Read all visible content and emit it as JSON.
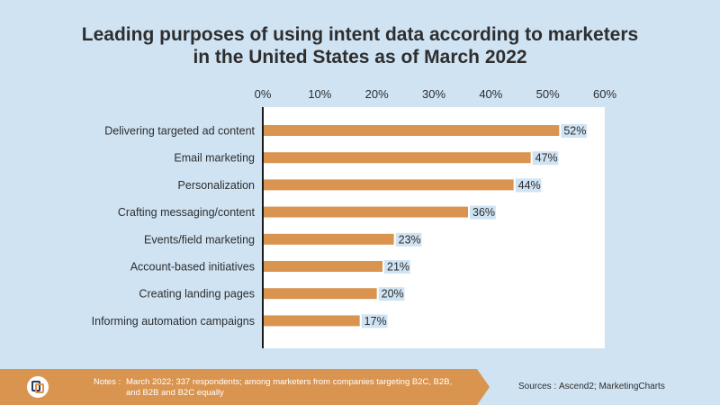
{
  "title_lines": [
    "Leading purposes of using intent data according to marketers",
    "in the United States as of March 2022"
  ],
  "chart_data": {
    "type": "bar",
    "orientation": "horizontal",
    "categories": [
      "Delivering targeted ad content",
      "Email marketing",
      "Personalization",
      "Crafting messaging/content",
      "Events/field marketing",
      "Account-based initiatives",
      "Creating landing pages",
      "Informing automation campaigns"
    ],
    "values": [
      52,
      47,
      44,
      36,
      23,
      21,
      20,
      17
    ],
    "value_labels": [
      "52%",
      "47%",
      "44%",
      "36%",
      "23%",
      "21%",
      "20%",
      "17%"
    ],
    "xlim": [
      0,
      60
    ],
    "xticks": [
      "0%",
      "10%",
      "20%",
      "30%",
      "40%",
      "50%",
      "60%"
    ],
    "tick_values": [
      0,
      10,
      20,
      30,
      40,
      50,
      60
    ],
    "x_axis_position": "top",
    "grid": false,
    "bar_color": "#d9944f",
    "label_bg_color": "#cfe3f3"
  },
  "footer": {
    "notes_label": "Notes :",
    "notes_text": "March 2022; 337 respondents; among marketers from companies targeting B2C, B2B, and B2B and B2C equally",
    "sources_label": "Sources :",
    "sources_text": "Ascend2; MarketingCharts"
  },
  "colors": {
    "background": "#cfe3f3",
    "bar": "#d9944f",
    "notes_panel": "#d9944f",
    "text": "#2e2e2e"
  },
  "icons": {
    "brand_logo": "marketingcharts-logo-icon"
  }
}
